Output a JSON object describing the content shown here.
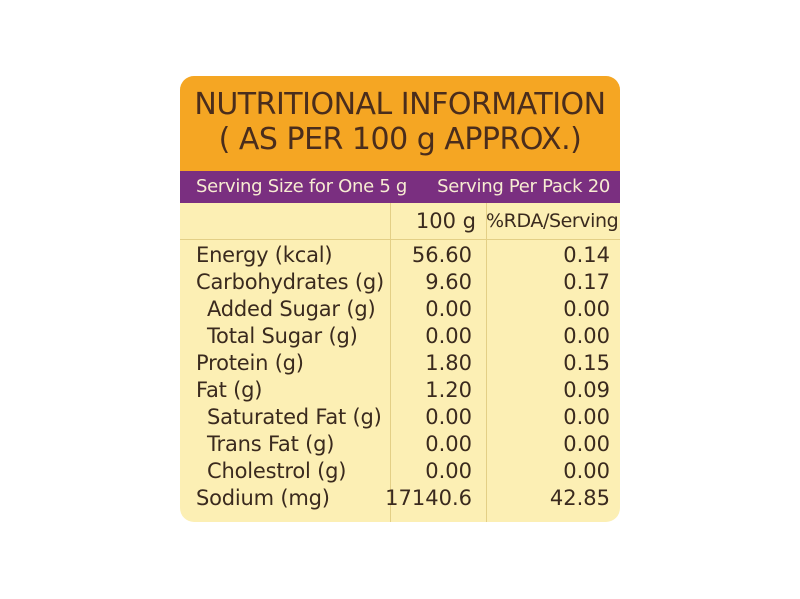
{
  "title_line1": "NUTRITIONAL INFORMATION",
  "title_line2": "( AS PER 100 g APPROX.)",
  "serving_size": "Serving Size for One 5 g",
  "serving_per_pack": "Serving Per Pack 20",
  "col_100g": "100 g",
  "col_rda": "%RDA/Serving",
  "rows": [
    {
      "name": "Energy (kcal)",
      "v100": "56.60",
      "rda": "0.14"
    },
    {
      "name": "Carbohydrates (g)",
      "v100": "9.60",
      "rda": "0.17"
    },
    {
      "name": "Added Sugar (g)",
      "v100": "0.00",
      "rda": "0.00"
    },
    {
      "name": "Total Sugar (g)",
      "v100": "0.00",
      "rda": "0.00"
    },
    {
      "name": "Protein (g)",
      "v100": "1.80",
      "rda": "0.15"
    },
    {
      "name": "Fat (g)",
      "v100": "1.20",
      "rda": "0.09"
    },
    {
      "name": "Saturated Fat (g)",
      "v100": "0.00",
      "rda": "0.00"
    },
    {
      "name": "Trans Fat (g)",
      "v100": "0.00",
      "rda": "0.00"
    },
    {
      "name": "Cholestrol (g)",
      "v100": "0.00",
      "rda": "0.00"
    },
    {
      "name": "Sodium (mg)",
      "v100": "17140.6",
      "rda": "42.85"
    }
  ],
  "colors": {
    "header": "#f5a623",
    "band": "#7a2f80",
    "panel": "#fcefb4",
    "text": "#3a2a1e"
  }
}
